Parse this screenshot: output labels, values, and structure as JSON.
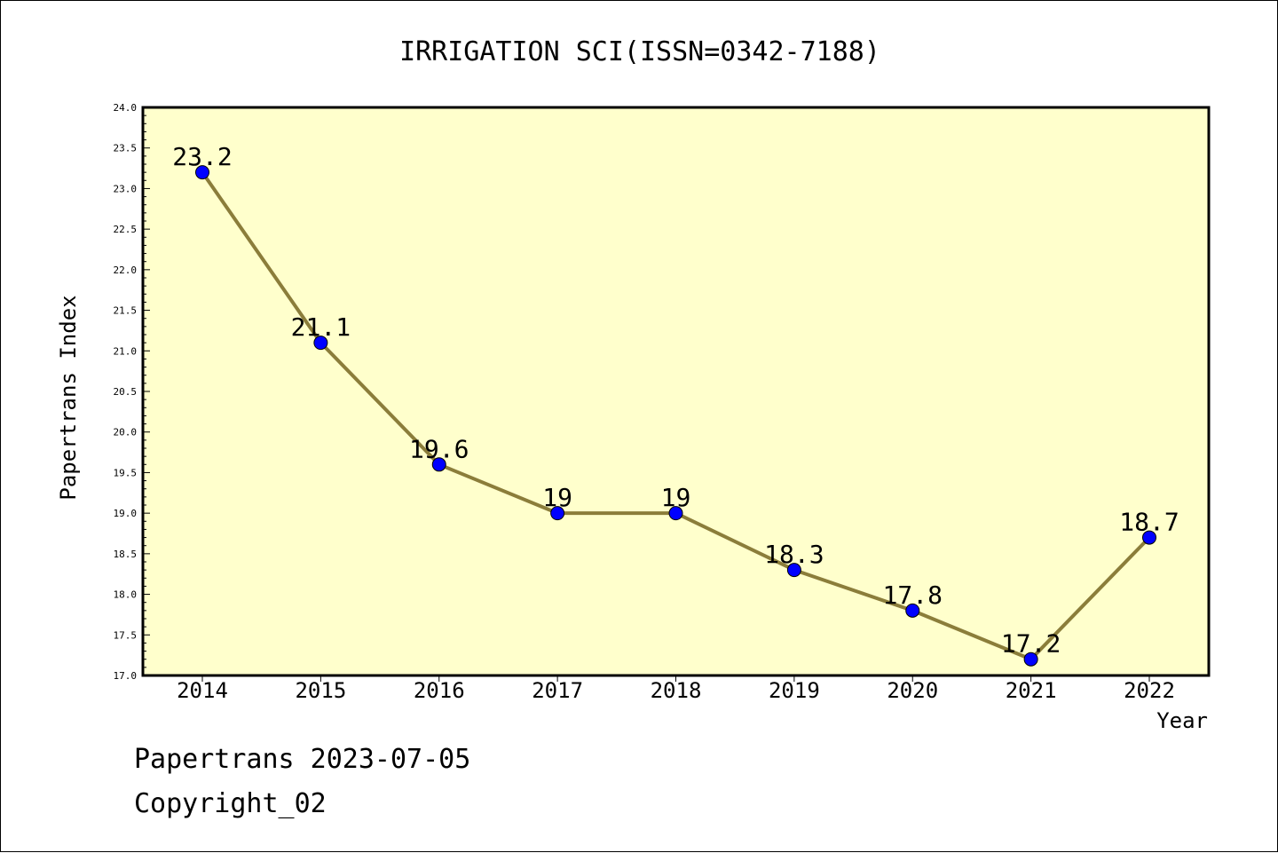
{
  "chart_data": {
    "type": "line",
    "title": "IRRIGATION SCI(ISSN=0342-7188)",
    "xlabel": "Year",
    "ylabel": "Papertrans Index",
    "categories": [
      "2014",
      "2015",
      "2016",
      "2017",
      "2018",
      "2019",
      "2020",
      "2021",
      "2022"
    ],
    "series": [
      {
        "values": [
          23.2,
          21.1,
          19.6,
          19.0,
          19.0,
          18.3,
          17.8,
          17.2,
          18.7
        ]
      }
    ],
    "data_labels": [
      "23.2",
      "21.1",
      "19.6",
      "19",
      "19",
      "18.3",
      "17.8",
      "17.2",
      "18.7"
    ],
    "ylim": [
      17.0,
      24.0
    ],
    "yticks": [
      "17.0",
      "17.5",
      "18.0",
      "18.5",
      "19.0",
      "19.5",
      "20.0",
      "20.5",
      "21.0",
      "21.5",
      "22.0",
      "22.5",
      "23.0",
      "23.5",
      "24.0"
    ],
    "grid": false,
    "colors": {
      "plot_background": "#ffffcc",
      "line": "#8b7d3a",
      "marker": "#0000ff"
    }
  },
  "footer": {
    "line1": "Papertrans 2023-07-05",
    "line2": "Copyright_02"
  }
}
